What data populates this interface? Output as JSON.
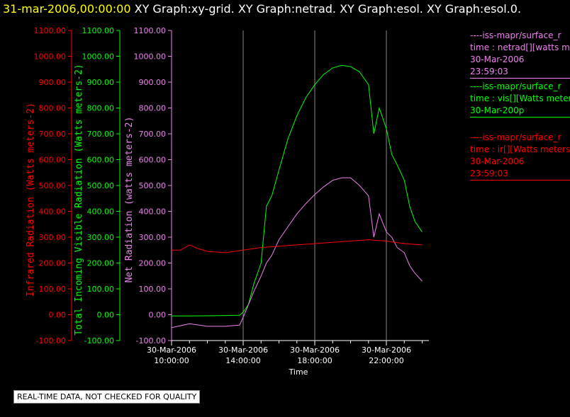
{
  "header": {
    "date": "31-mar-2006,00:00:00",
    "graphs": "XY Graph:xy-grid.  XY Graph:netrad.  XY Graph:esol.  XY Graph:esol.0."
  },
  "quality_note": "REAL-TIME DATA, NOT CHECKED FOR QUALITY",
  "legend": [
    {
      "lines": [
        "----iss-mapr/surface_r",
        "time : netrad[][watts m",
        "30-Mar-2006",
        "23:59:03"
      ],
      "color": "#ee82ee"
    },
    {
      "lines": [
        "----iss-mapr/surface_r",
        "time : vis[][Watts meter",
        "30-Mar-200p"
      ],
      "color": "#00ff00"
    },
    {
      "lines": [
        "----iss-mapr/surface_r",
        "time : ir[][Watts meters",
        "30-Mar-2006",
        "23:59:03"
      ],
      "color": "#ff0000"
    }
  ],
  "chart_data": {
    "type": "line",
    "xlabel": "Time",
    "x_ticks": [
      {
        "hour": 10,
        "date": "30-Mar-2006",
        "time": "10:00:00"
      },
      {
        "hour": 14,
        "date": "30-Mar-2006",
        "time": "14:00:00"
      },
      {
        "hour": 18,
        "date": "30-Mar-2006",
        "time": "18:00:00"
      },
      {
        "hour": 22,
        "date": "30-Mar-2006",
        "time": "22:00:00"
      }
    ],
    "xlim": [
      10,
      24
    ],
    "ylim": [
      -100,
      1100
    ],
    "grid": "vertical lines at labeled times",
    "y_axes": [
      {
        "label": "Infrared Radiation (Watts meters-2)",
        "color": "#ff0000",
        "ticks": [
          "1100.00",
          "1000.00",
          "900.00",
          "800.00",
          "700.00",
          "600.00",
          "500.00",
          "400.00",
          "300.00",
          "200.00",
          "100.00",
          "0.00",
          "-100.00"
        ]
      },
      {
        "label": "Total Incoming Visible Radiation (Watts meters-2)",
        "color": "#00ff00",
        "ticks": [
          "1100.00",
          "1000.00",
          "900.00",
          "800.00",
          "700.00",
          "600.00",
          "500.00",
          "400.00",
          "300.00",
          "200.00",
          "100.00",
          "0.00",
          "-100.00"
        ]
      },
      {
        "label": "Net Radiation (watts meters-2)",
        "color": "#ee82ee",
        "ticks": [
          "1100.00",
          "1000.00",
          "900.00",
          "800.00",
          "700.00",
          "600.00",
          "500.00",
          "400.00",
          "300.00",
          "200.00",
          "100.00",
          "0.00",
          "-100.00"
        ]
      }
    ],
    "series": [
      {
        "color": "#00ff00",
        "x": [
          10,
          11,
          12,
          13,
          13.8,
          14,
          14.3,
          14.6,
          15,
          15.3,
          15.6,
          16,
          16.5,
          17,
          17.5,
          18,
          18.5,
          19,
          19.5,
          20,
          20.5,
          21,
          21.3,
          21.6,
          22,
          22.3,
          22.6,
          23,
          23.3,
          23.6,
          24
        ],
        "y": [
          -5,
          -5,
          -4,
          -3,
          -2,
          10,
          40,
          120,
          200,
          420,
          460,
          560,
          680,
          770,
          840,
          890,
          930,
          955,
          965,
          960,
          940,
          890,
          700,
          800,
          720,
          620,
          580,
          520,
          420,
          360,
          320
        ]
      },
      {
        "color": "#ee82ee",
        "x": [
          10,
          11,
          12,
          13,
          13.8,
          14,
          14.3,
          14.6,
          15,
          15.3,
          15.6,
          16,
          16.5,
          17,
          17.5,
          18,
          18.5,
          19,
          19.5,
          20,
          20.5,
          21,
          21.3,
          21.6,
          22,
          22.3,
          22.6,
          23,
          23.3,
          23.6,
          24
        ],
        "y": [
          -50,
          -35,
          -45,
          -45,
          -40,
          -10,
          40,
          90,
          150,
          200,
          230,
          290,
          340,
          390,
          430,
          465,
          495,
          520,
          530,
          530,
          500,
          460,
          300,
          390,
          320,
          300,
          260,
          240,
          190,
          160,
          130
        ]
      },
      {
        "color": "#ff0000",
        "x": [
          10,
          10.5,
          11,
          11.5,
          12,
          13,
          14,
          15,
          16,
          17,
          18,
          19,
          20,
          21,
          22,
          23,
          24
        ],
        "y": [
          250,
          250,
          270,
          255,
          245,
          240,
          250,
          260,
          265,
          270,
          275,
          280,
          285,
          290,
          285,
          275,
          270
        ]
      }
    ]
  }
}
